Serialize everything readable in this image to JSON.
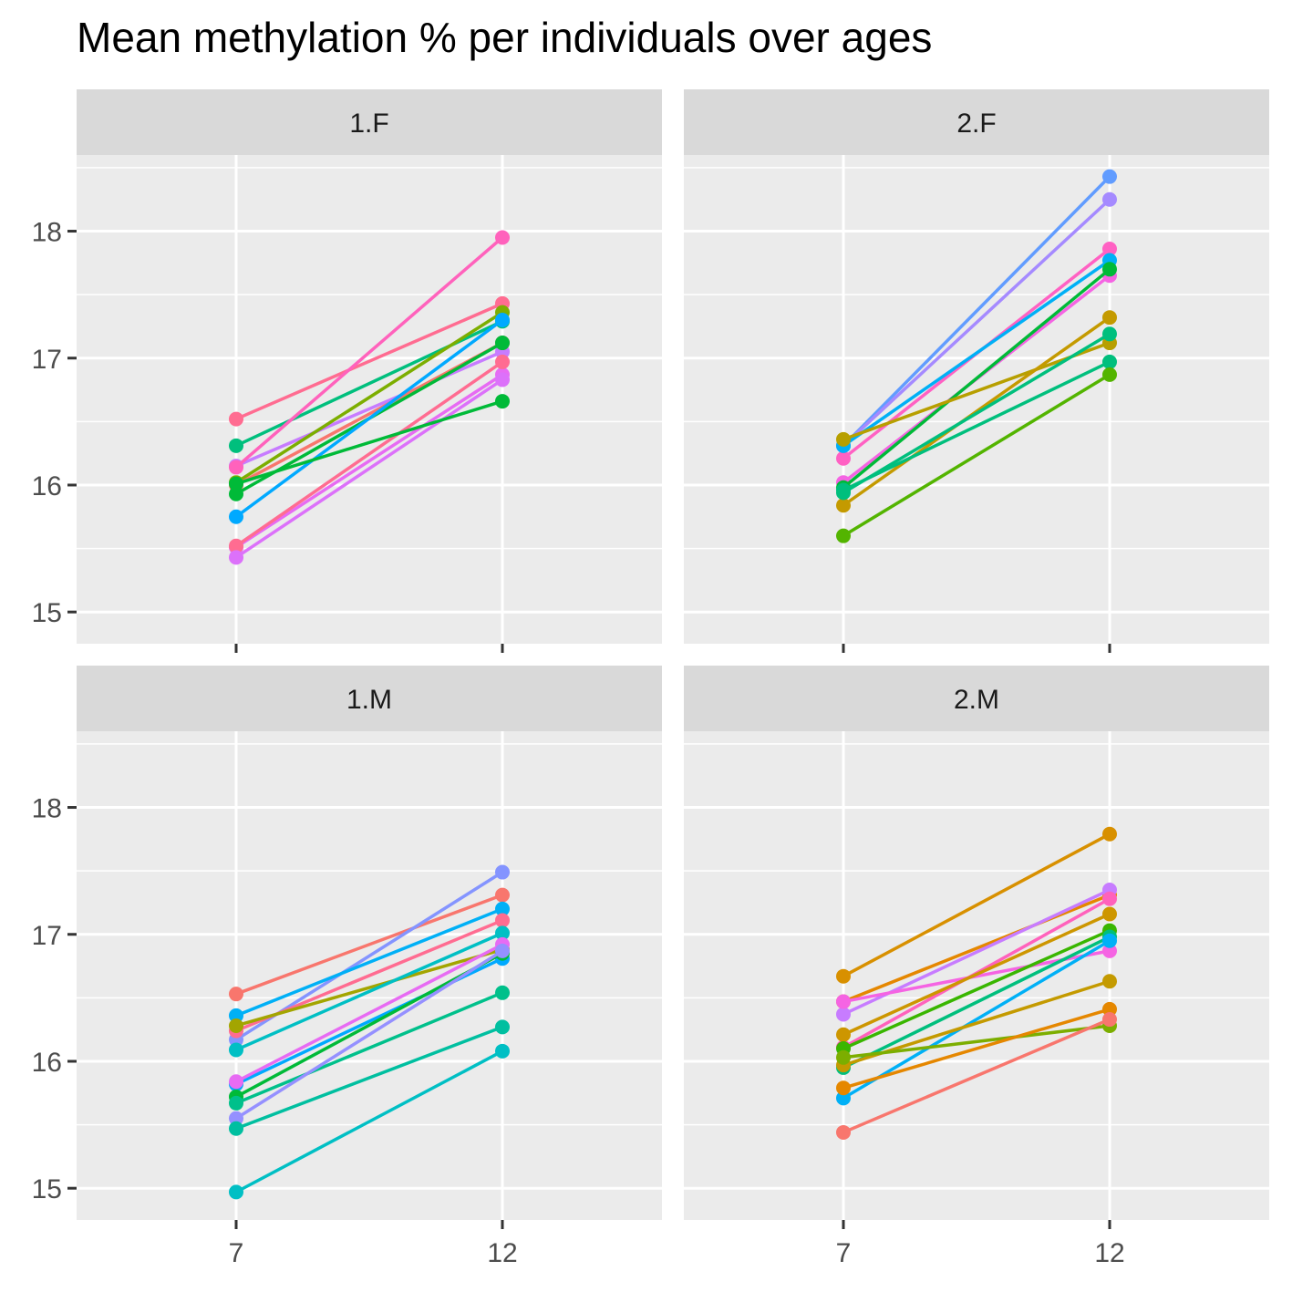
{
  "chart_data": {
    "type": "line",
    "title": "Mean methylation % per individuals over ages",
    "xlabel": "",
    "ylabel": "",
    "x_ticks": [
      "7",
      "12"
    ],
    "y_ticks": [
      "15",
      "16",
      "17",
      "18"
    ],
    "ylim": [
      14.75,
      18.6
    ],
    "grid": true,
    "legend": "none",
    "panels": [
      {
        "label": "1.F",
        "series": [
          {
            "color": "#FF6C91",
            "values": [
              16.52,
              17.43
            ]
          },
          {
            "color": "#00BF7D",
            "values": [
              16.31,
              17.29
            ]
          },
          {
            "color": "#C77CFF",
            "values": [
              16.15,
              17.05
            ]
          },
          {
            "color": "#FF62BC",
            "values": [
              16.14,
              17.95
            ]
          },
          {
            "color": "#7CAE00",
            "values": [
              16.02,
              17.36
            ]
          },
          {
            "color": "#F8766D",
            "values": [
              16.0,
              17.12
            ]
          },
          {
            "color": "#00BA38",
            "values": [
              15.93,
              17.12
            ]
          },
          {
            "color": "#00A9FF",
            "values": [
              15.75,
              17.3
            ]
          },
          {
            "color": "#E76BF3",
            "values": [
              15.51,
              16.87
            ]
          },
          {
            "color": "#FF6C91",
            "values": [
              15.52,
              16.97
            ]
          },
          {
            "color": "#DC71FA",
            "values": [
              15.43,
              16.83
            ]
          },
          {
            "color": "#00BA38",
            "values": [
              16.01,
              16.66
            ]
          }
        ]
      },
      {
        "label": "2.F",
        "series": [
          {
            "color": "#619CFF",
            "values": [
              16.31,
              18.43
            ]
          },
          {
            "color": "#A58AFF",
            "values": [
              16.31,
              18.25
            ]
          },
          {
            "color": "#FF61C3",
            "values": [
              16.21,
              17.86
            ]
          },
          {
            "color": "#00B0F6",
            "values": [
              16.31,
              17.77
            ]
          },
          {
            "color": "#F564E3",
            "values": [
              16.02,
              17.65
            ]
          },
          {
            "color": "#00BA38",
            "values": [
              15.98,
              17.7
            ]
          },
          {
            "color": "#B79F00",
            "values": [
              16.36,
              17.12
            ]
          },
          {
            "color": "#C49A00",
            "values": [
              15.84,
              17.32
            ]
          },
          {
            "color": "#00BF7D",
            "values": [
              15.94,
              17.19
            ]
          },
          {
            "color": "#00BF7D",
            "values": [
              15.96,
              16.97
            ]
          },
          {
            "color": "#53B400",
            "values": [
              15.6,
              16.87
            ]
          }
        ]
      },
      {
        "label": "1.M",
        "series": [
          {
            "color": "#F8766D",
            "values": [
              16.53,
              17.31
            ]
          },
          {
            "color": "#8494FF",
            "values": [
              16.17,
              17.49
            ]
          },
          {
            "color": "#00B0F6",
            "values": [
              16.36,
              17.2
            ]
          },
          {
            "color": "#FF6C91",
            "values": [
              16.24,
              17.11
            ]
          },
          {
            "color": "#A3A500",
            "values": [
              16.28,
              16.88
            ]
          },
          {
            "color": "#00BFC4",
            "values": [
              16.09,
              17.01
            ]
          },
          {
            "color": "#00A9FF",
            "values": [
              15.82,
              16.81
            ]
          },
          {
            "color": "#E76BF3",
            "values": [
              15.84,
              16.92
            ]
          },
          {
            "color": "#00BA38",
            "values": [
              15.72,
              16.85
            ]
          },
          {
            "color": "#00C08B",
            "values": [
              15.67,
              16.54
            ]
          },
          {
            "color": "#9590FF",
            "values": [
              15.55,
              16.87
            ]
          },
          {
            "color": "#00BFA0",
            "values": [
              15.47,
              16.27
            ]
          },
          {
            "color": "#00BFC4",
            "values": [
              14.97,
              16.08
            ]
          }
        ]
      },
      {
        "label": "2.M",
        "series": [
          {
            "color": "#D89000",
            "values": [
              16.67,
              17.79
            ]
          },
          {
            "color": "#E58700",
            "values": [
              16.47,
              17.31
            ]
          },
          {
            "color": "#C77CFF",
            "values": [
              16.37,
              17.35
            ]
          },
          {
            "color": "#F564E3",
            "values": [
              16.47,
              16.87
            ]
          },
          {
            "color": "#FF62BC",
            "values": [
              16.11,
              17.28
            ]
          },
          {
            "color": "#CD9600",
            "values": [
              16.21,
              17.16
            ]
          },
          {
            "color": "#39B600",
            "values": [
              16.1,
              17.03
            ]
          },
          {
            "color": "#00BF7D",
            "values": [
              15.95,
              16.98
            ]
          },
          {
            "color": "#00B0F6",
            "values": [
              15.71,
              16.95
            ]
          },
          {
            "color": "#C49A00",
            "values": [
              15.97,
              16.63
            ]
          },
          {
            "color": "#7CAE00",
            "values": [
              16.03,
              16.28
            ]
          },
          {
            "color": "#E58700",
            "values": [
              15.79,
              16.41
            ]
          },
          {
            "color": "#F8766D",
            "values": [
              15.44,
              16.33
            ]
          }
        ]
      }
    ]
  }
}
